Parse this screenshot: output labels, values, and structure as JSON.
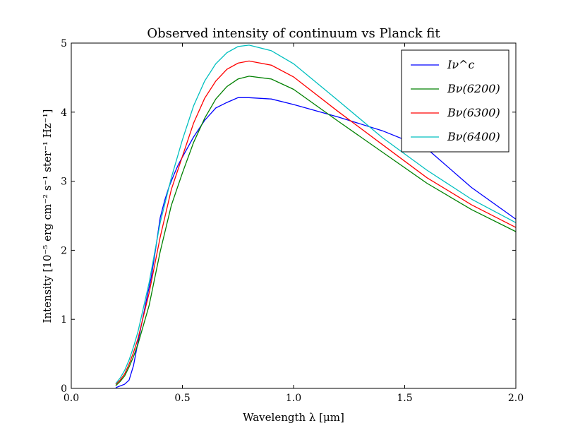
{
  "chart_data": {
    "type": "line",
    "title": "Observed intensity of continuum vs Planck fit",
    "xlabel": "Wavelength λ [μm]",
    "ylabel": "Intensity [10⁻⁵ erg cm⁻² s⁻¹ ster⁻¹ Hz⁻¹]",
    "xlim": [
      0.0,
      2.0
    ],
    "ylim": [
      0,
      5
    ],
    "xticks": [
      "0.0",
      "0.5",
      "1.0",
      "1.5",
      "2.0"
    ],
    "yticks": [
      "0",
      "1",
      "2",
      "3",
      "4",
      "5"
    ],
    "grid": false,
    "legend_position": "top-right",
    "series": [
      {
        "name": "Iν^c",
        "color": "#0000ff",
        "x": [
          0.2,
          0.24,
          0.26,
          0.28,
          0.3,
          0.32,
          0.34,
          0.36,
          0.38,
          0.4,
          0.42,
          0.44,
          0.46,
          0.48,
          0.5,
          0.55,
          0.6,
          0.65,
          0.7,
          0.75,
          0.8,
          0.9,
          1.0,
          1.2,
          1.4,
          1.6,
          1.8,
          2.0
        ],
        "y": [
          0.01,
          0.06,
          0.12,
          0.33,
          0.67,
          0.99,
          1.31,
          1.61,
          2.03,
          2.47,
          2.72,
          2.92,
          3.08,
          3.23,
          3.35,
          3.64,
          3.88,
          4.06,
          4.14,
          4.21,
          4.21,
          4.19,
          4.11,
          3.93,
          3.73,
          3.47,
          2.91,
          2.45
        ]
      },
      {
        "name": "Bν(6200)",
        "color": "#008000",
        "x": [
          0.2,
          0.22,
          0.24,
          0.26,
          0.28,
          0.3,
          0.35,
          0.4,
          0.45,
          0.5,
          0.55,
          0.6,
          0.65,
          0.7,
          0.75,
          0.8,
          0.9,
          1.0,
          1.2,
          1.4,
          1.6,
          1.8,
          2.0
        ],
        "y": [
          0.04,
          0.1,
          0.18,
          0.31,
          0.46,
          0.64,
          1.2,
          1.98,
          2.65,
          3.12,
          3.56,
          3.91,
          4.19,
          4.37,
          4.48,
          4.52,
          4.48,
          4.33,
          3.87,
          3.42,
          2.97,
          2.59,
          2.27
        ]
      },
      {
        "name": "Bν(6300)",
        "color": "#ff0000",
        "x": [
          0.2,
          0.22,
          0.24,
          0.26,
          0.28,
          0.3,
          0.35,
          0.4,
          0.45,
          0.5,
          0.55,
          0.6,
          0.65,
          0.7,
          0.75,
          0.8,
          0.9,
          1.0,
          1.2,
          1.4,
          1.6,
          1.8,
          2.0
        ],
        "y": [
          0.06,
          0.12,
          0.21,
          0.35,
          0.52,
          0.72,
          1.38,
          2.19,
          2.88,
          3.36,
          3.84,
          4.2,
          4.45,
          4.62,
          4.71,
          4.74,
          4.68,
          4.51,
          4.01,
          3.53,
          3.05,
          2.66,
          2.33
        ]
      },
      {
        "name": "Bν(6400)",
        "color": "#00bfbf",
        "x": [
          0.2,
          0.22,
          0.24,
          0.26,
          0.28,
          0.3,
          0.35,
          0.4,
          0.45,
          0.5,
          0.55,
          0.6,
          0.65,
          0.7,
          0.75,
          0.8,
          0.9,
          1.0,
          1.2,
          1.4,
          1.6,
          1.8,
          2.0
        ],
        "y": [
          0.07,
          0.15,
          0.26,
          0.41,
          0.6,
          0.82,
          1.53,
          2.4,
          3.05,
          3.6,
          4.09,
          4.45,
          4.7,
          4.86,
          4.95,
          4.97,
          4.89,
          4.7,
          4.17,
          3.63,
          3.16,
          2.74,
          2.4
        ]
      }
    ]
  }
}
